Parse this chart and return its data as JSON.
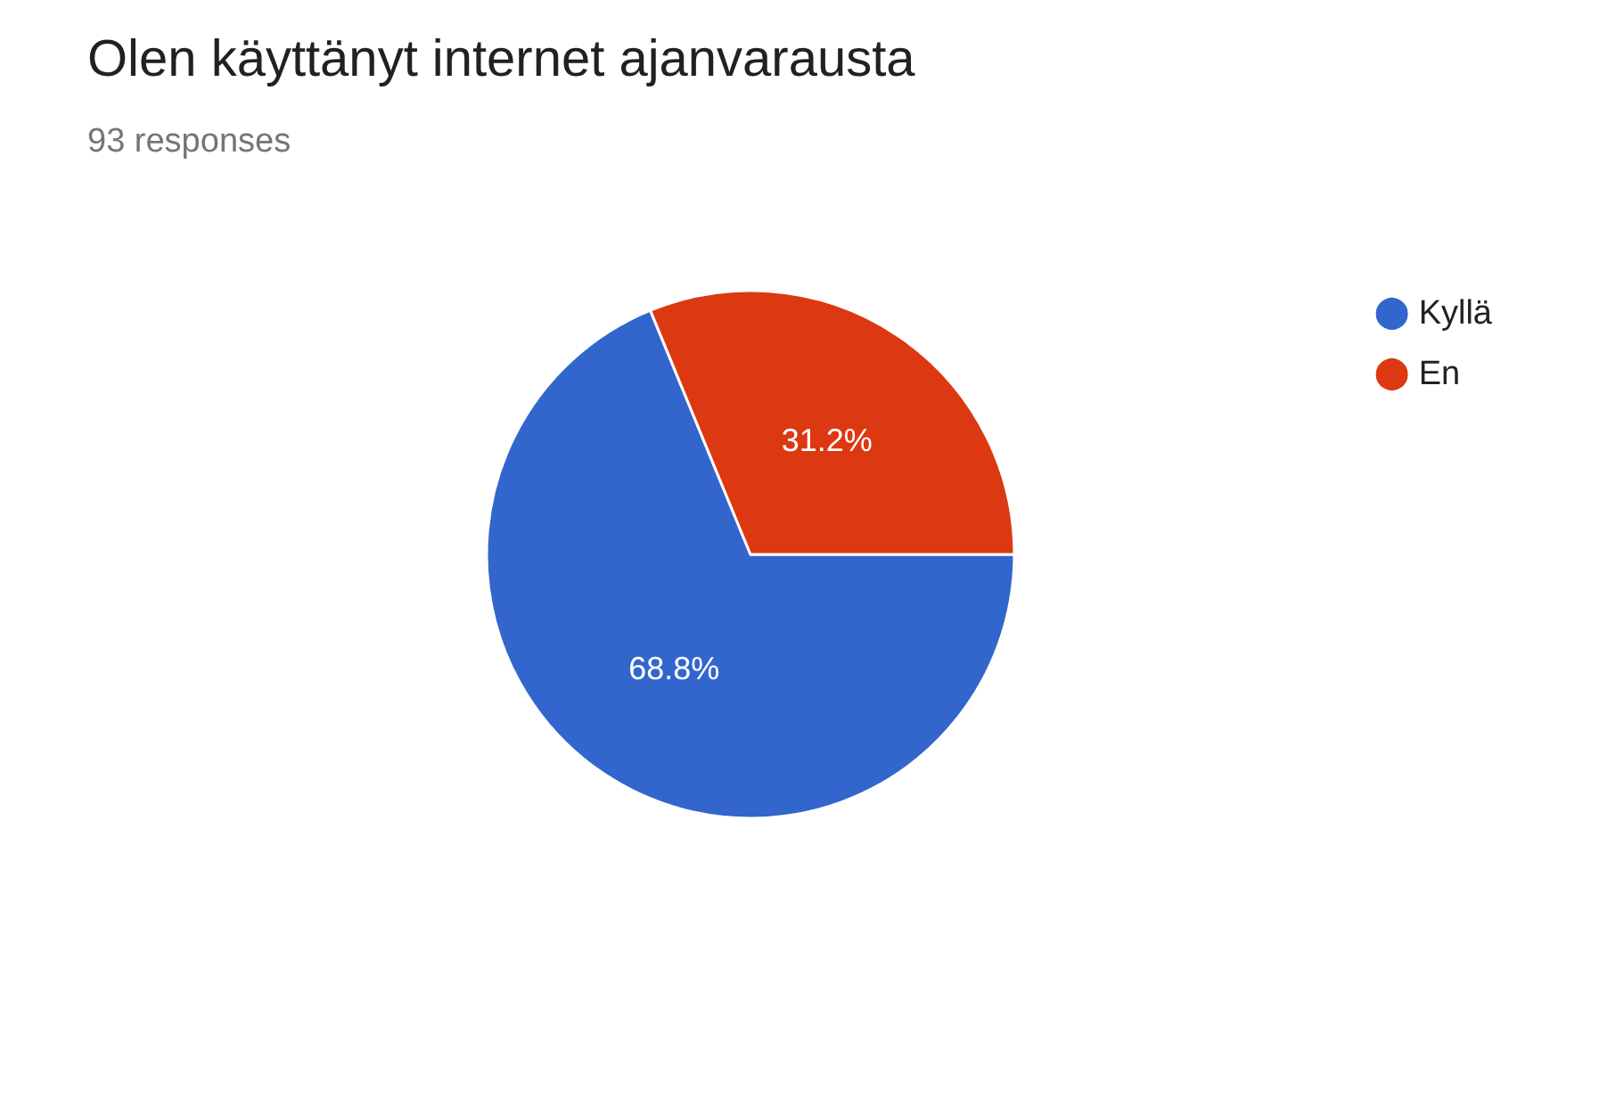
{
  "chart_data": {
    "type": "pie",
    "title": "Olen käyttänyt internet ajanvarausta",
    "subtitle": "93 responses",
    "categories": [
      "Kyllä",
      "En"
    ],
    "values": [
      68.8,
      31.2
    ],
    "colors": [
      "#3366cc",
      "#dc3912"
    ],
    "value_labels": [
      "68.8%",
      "31.2%"
    ],
    "legend": "top right"
  }
}
